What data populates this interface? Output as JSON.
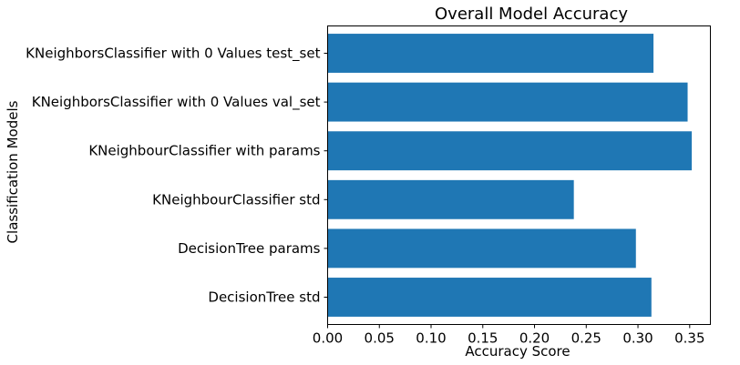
{
  "chart_data": {
    "type": "bar",
    "orientation": "horizontal",
    "title": "Overall Model Accuracy",
    "xlabel": "Accuracy Score",
    "ylabel": "Classification Models",
    "categories": [
      "DecisionTree std",
      "DecisionTree params",
      "KNeighbourClassifier std",
      "KNeighbourClassifier with params",
      "KNeighborsClassifier with 0 Values val_set",
      "KNeighborsClassifier with 0 Values test_set"
    ],
    "values": [
      0.313,
      0.298,
      0.238,
      0.352,
      0.348,
      0.315
    ],
    "xlim": [
      0.0,
      0.37
    ],
    "xticks": [
      "0.00",
      "0.05",
      "0.10",
      "0.15",
      "0.20",
      "0.25",
      "0.30",
      "0.35"
    ],
    "grid": false,
    "bar_color": "#1f77b4"
  }
}
